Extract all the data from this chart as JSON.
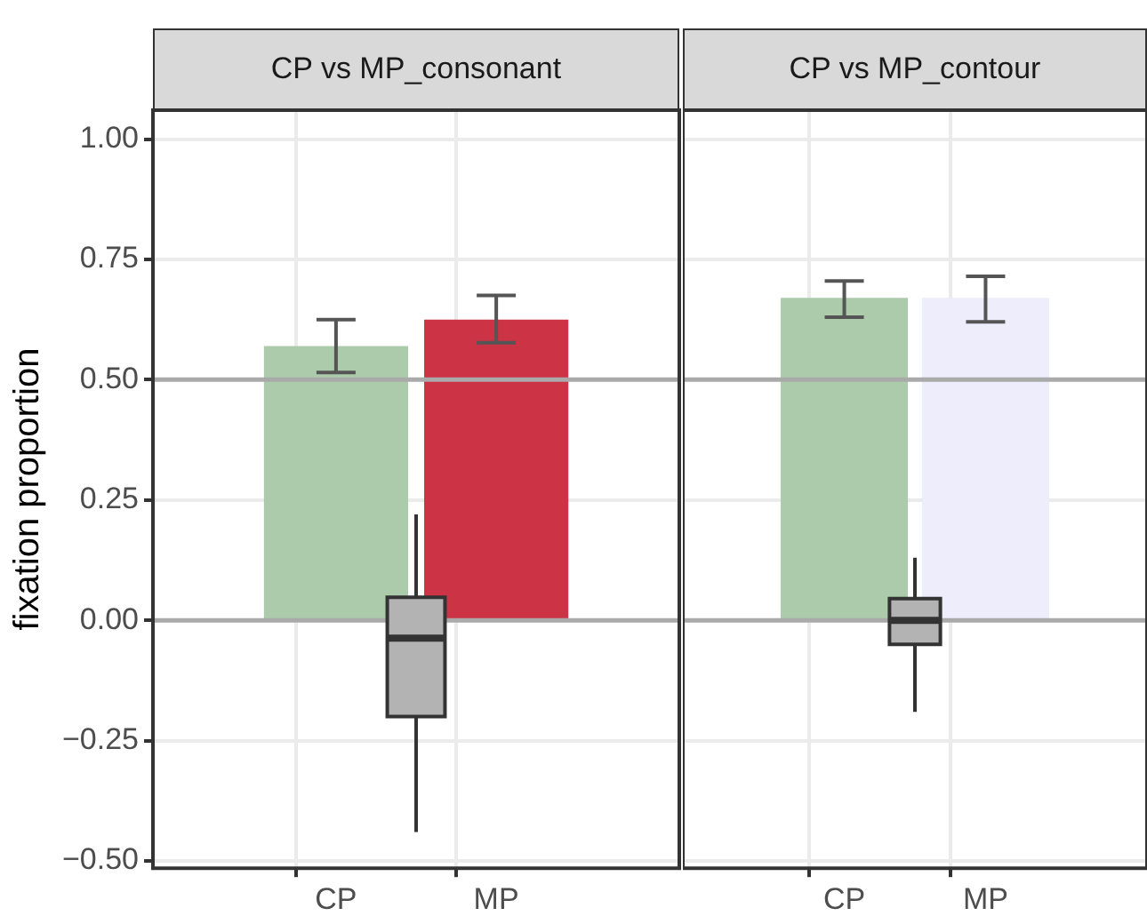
{
  "chart_data": [
    {
      "type": "bar",
      "title": "CP vs MP_consonant",
      "ylabel": "fixation proportion",
      "categories": [
        "CP",
        null,
        "MP"
      ],
      "ylim": [
        -0.515,
        1.06
      ],
      "yticks": [
        {
          "value": -0.5,
          "label": "−0.50"
        },
        {
          "value": -0.25,
          "label": "−0.25"
        },
        {
          "value": 0,
          "label": "0.00"
        },
        {
          "value": 0.25,
          "label": "0.25"
        },
        {
          "value": 0.5,
          "label": "0.50"
        },
        {
          "value": 0.75,
          "label": "0.75"
        },
        {
          "value": 1,
          "label": "1.00"
        }
      ],
      "grid": true,
      "legend": false,
      "ref_lines": [
        {
          "axis": "y",
          "value": 0,
          "color": "#aaaaaa"
        },
        {
          "axis": "y",
          "value": 0.5,
          "color": "#aaaaaa"
        }
      ],
      "series": [
        {
          "values": [
            0.57,
            null,
            0.625
          ],
          "colors": [
            "#abcbaa",
            null,
            "#cc3344"
          ],
          "errors": [
            [
              0.515,
              0.625
            ],
            null,
            [
              0.577,
              0.675
            ]
          ]
        },
        {
          "type": "box",
          "color": "#b3b3b3",
          "boxes": [
            null,
            {
              "low": -0.44,
              "q1": -0.2,
              "median": -0.037,
              "q3": 0.048,
              "high": 0.22
            },
            null
          ]
        }
      ]
    },
    {
      "type": "bar",
      "title": "CP vs MP_contour",
      "tick_labels": "x",
      "categories": [
        "CP",
        null,
        "MP"
      ],
      "ylim": [
        -0.515,
        1.06
      ],
      "yticks": [
        -0.5,
        -0.25,
        0,
        0.25,
        0.5,
        0.75,
        1
      ],
      "grid": true,
      "legend": false,
      "ref_lines": [
        {
          "axis": "y",
          "value": 0,
          "color": "#aaaaaa"
        },
        {
          "axis": "y",
          "value": 0.5,
          "color": "#aaaaaa"
        }
      ],
      "series": [
        {
          "values": [
            0.67,
            null,
            0.67
          ],
          "colors": [
            "#abcbaa",
            null,
            "#ededfc"
          ],
          "errors": [
            [
              0.63,
              0.705
            ],
            null,
            [
              0.62,
              0.715
            ]
          ]
        },
        {
          "type": "box",
          "color": "#b3b3b3",
          "boxes": [
            null,
            {
              "low": -0.19,
              "q1": -0.05,
              "median": 0.0,
              "q3": 0.045,
              "high": 0.13
            },
            null
          ]
        }
      ]
    }
  ]
}
